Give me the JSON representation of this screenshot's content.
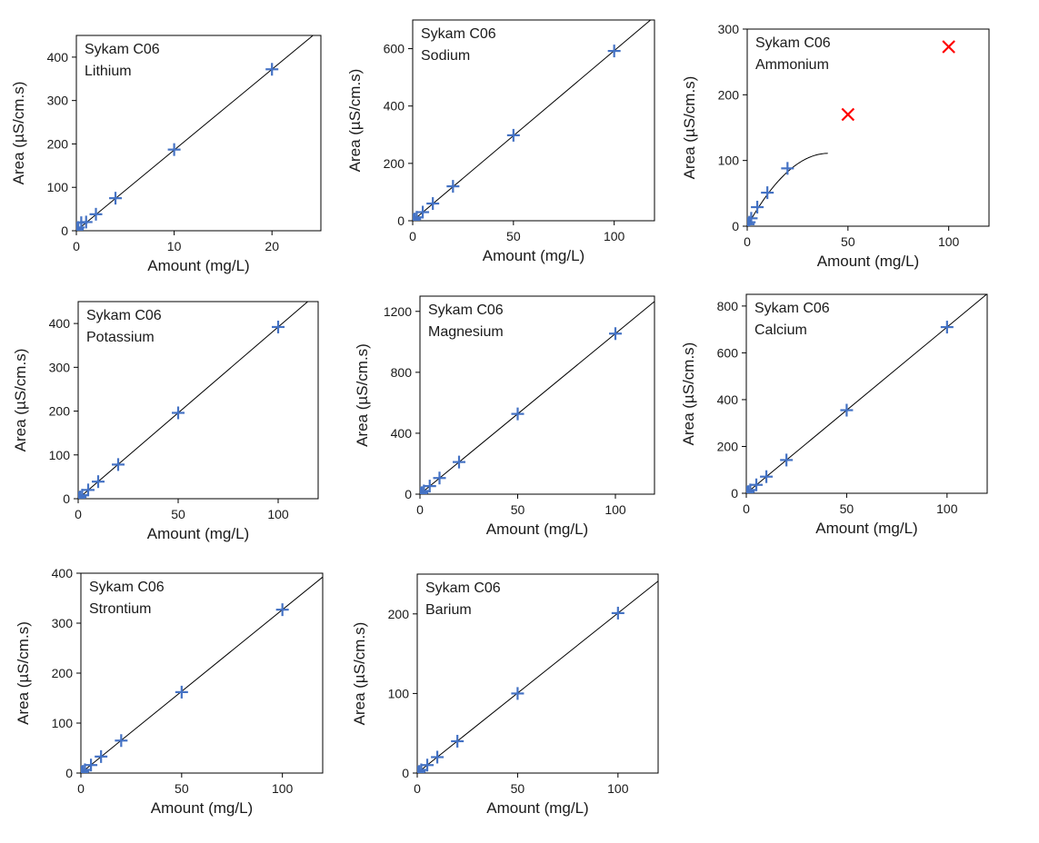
{
  "colors": {
    "marker": "#4472C4",
    "outlier": "#FF0000",
    "line": "#000000"
  },
  "chart_data": [
    {
      "type": "scatter",
      "annotation": [
        "Sykam C06",
        "Lithium"
      ],
      "xlabel": "Amount (mg/L)",
      "ylabel": "Area (µS/cm.s)",
      "xlim": [
        0,
        25
      ],
      "ylim": [
        0,
        450
      ],
      "xticks": [
        0,
        10,
        20
      ],
      "yticks": [
        0,
        100,
        200,
        300,
        400
      ],
      "series": [
        {
          "marker": "plus",
          "x": [
            0.05,
            0.1,
            0.2,
            0.5,
            1,
            2,
            4,
            10,
            20
          ],
          "y": [
            1,
            3.7,
            7.5,
            18.5,
            20,
            38,
            75,
            187,
            372
          ]
        }
      ],
      "fit": {
        "kind": "linear",
        "slope": 18.6,
        "intercept": 0,
        "x": [
          0,
          25
        ]
      }
    },
    {
      "type": "scatter",
      "annotation": [
        "Sykam C06",
        "Sodium"
      ],
      "xlabel": "Amount (mg/L)",
      "ylabel": "Area (µS/cm.s)",
      "xlim": [
        0,
        120
      ],
      "ylim": [
        0,
        700
      ],
      "xticks": [
        0,
        50,
        100
      ],
      "yticks": [
        0,
        200,
        400,
        600
      ],
      "series": [
        {
          "marker": "plus",
          "x": [
            0.5,
            1,
            2,
            5,
            10,
            20,
            50,
            100
          ],
          "y": [
            3,
            6,
            12,
            30,
            60,
            120,
            298,
            592
          ]
        }
      ],
      "fit": {
        "kind": "linear",
        "slope": 5.93,
        "intercept": 0,
        "x": [
          0,
          120
        ]
      }
    },
    {
      "type": "scatter",
      "annotation": [
        "Sykam C06",
        "Ammonium"
      ],
      "xlabel": "Amount (mg/L)",
      "ylabel": "Area (µS/cm.s)",
      "xlim": [
        0,
        120
      ],
      "ylim": [
        0,
        300
      ],
      "xticks": [
        0,
        50,
        100
      ],
      "yticks": [
        0,
        100,
        200,
        300
      ],
      "series": [
        {
          "marker": "plus",
          "x": [
            0.5,
            1,
            2,
            5,
            10,
            20
          ],
          "y": [
            3,
            6,
            12,
            29,
            51,
            88
          ]
        },
        {
          "marker": "x",
          "x": [
            50,
            100
          ],
          "y": [
            170,
            273
          ]
        }
      ],
      "fit": {
        "kind": "quadratic",
        "a": -0.0682,
        "b": 5.5,
        "c": 0,
        "x": [
          0,
          40
        ]
      }
    },
    {
      "type": "scatter",
      "annotation": [
        "Sykam C06",
        "Potassium"
      ],
      "xlabel": "Amount (mg/L)",
      "ylabel": "Area (µS/cm.s)",
      "xlim": [
        0,
        120
      ],
      "ylim": [
        0,
        450
      ],
      "xticks": [
        0,
        50,
        100
      ],
      "yticks": [
        0,
        100,
        200,
        300,
        400
      ],
      "series": [
        {
          "marker": "plus",
          "x": [
            0.5,
            1,
            2,
            5,
            10,
            20,
            50,
            100
          ],
          "y": [
            2,
            4,
            8,
            20,
            39,
            78,
            196,
            392
          ]
        }
      ],
      "fit": {
        "kind": "linear",
        "slope": 3.92,
        "intercept": 0,
        "x": [
          0,
          120
        ]
      }
    },
    {
      "type": "scatter",
      "annotation": [
        "Sykam C06",
        "Magnesium"
      ],
      "xlabel": "Amount (mg/L)",
      "ylabel": "Area (µS/cm.s)",
      "xlim": [
        0,
        120
      ],
      "ylim": [
        0,
        1300
      ],
      "xticks": [
        0,
        50,
        100
      ],
      "yticks": [
        0,
        400,
        800,
        1200
      ],
      "series": [
        {
          "marker": "plus",
          "x": [
            0.5,
            1,
            2,
            5,
            10,
            20,
            50,
            100
          ],
          "y": [
            5,
            10,
            21,
            53,
            106,
            211,
            527,
            1054
          ]
        }
      ],
      "fit": {
        "kind": "linear",
        "slope": 10.54,
        "intercept": 0,
        "x": [
          0,
          120
        ]
      }
    },
    {
      "type": "scatter",
      "annotation": [
        "Sykam C06",
        "Calcium"
      ],
      "xlabel": "Amount (mg/L)",
      "ylabel": "Area (µS/cm.s)",
      "xlim": [
        0,
        120
      ],
      "ylim": [
        0,
        850
      ],
      "xticks": [
        0,
        50,
        100
      ],
      "yticks": [
        0,
        200,
        400,
        600,
        800
      ],
      "series": [
        {
          "marker": "plus",
          "x": [
            0.5,
            1,
            2,
            5,
            10,
            20,
            50,
            100
          ],
          "y": [
            4,
            7,
            14,
            36,
            71,
            142,
            355,
            710
          ]
        }
      ],
      "fit": {
        "kind": "linear",
        "slope": 7.1,
        "intercept": 0,
        "x": [
          0,
          120
        ]
      }
    },
    {
      "type": "scatter",
      "annotation": [
        "Sykam C06",
        "Strontium"
      ],
      "xlabel": "Amount (mg/L)",
      "ylabel": "Area (µS/cm.s)",
      "xlim": [
        0,
        120
      ],
      "ylim": [
        0,
        400
      ],
      "xticks": [
        0,
        50,
        100
      ],
      "yticks": [
        0,
        100,
        200,
        300,
        400
      ],
      "series": [
        {
          "marker": "plus",
          "x": [
            0.5,
            1,
            2,
            5,
            10,
            20,
            50,
            100
          ],
          "y": [
            2,
            3.3,
            6.5,
            16,
            33,
            65,
            162,
            327
          ]
        }
      ],
      "fit": {
        "kind": "linear",
        "slope": 3.27,
        "intercept": 0,
        "x": [
          0,
          120
        ]
      }
    },
    {
      "type": "scatter",
      "annotation": [
        "Sykam C06",
        "Barium"
      ],
      "xlabel": "Amount (mg/L)",
      "ylabel": "Area (µS/cm.s)",
      "xlim": [
        0,
        120
      ],
      "ylim": [
        0,
        250
      ],
      "xticks": [
        0,
        50,
        100
      ],
      "yticks": [
        0,
        100,
        200
      ],
      "series": [
        {
          "marker": "plus",
          "x": [
            0.5,
            1,
            2,
            5,
            10,
            20,
            50,
            100
          ],
          "y": [
            1,
            2,
            4,
            10,
            20,
            40,
            100,
            201
          ]
        }
      ],
      "fit": {
        "kind": "linear",
        "slope": 2.01,
        "intercept": 0,
        "x": [
          0,
          120
        ]
      }
    }
  ]
}
